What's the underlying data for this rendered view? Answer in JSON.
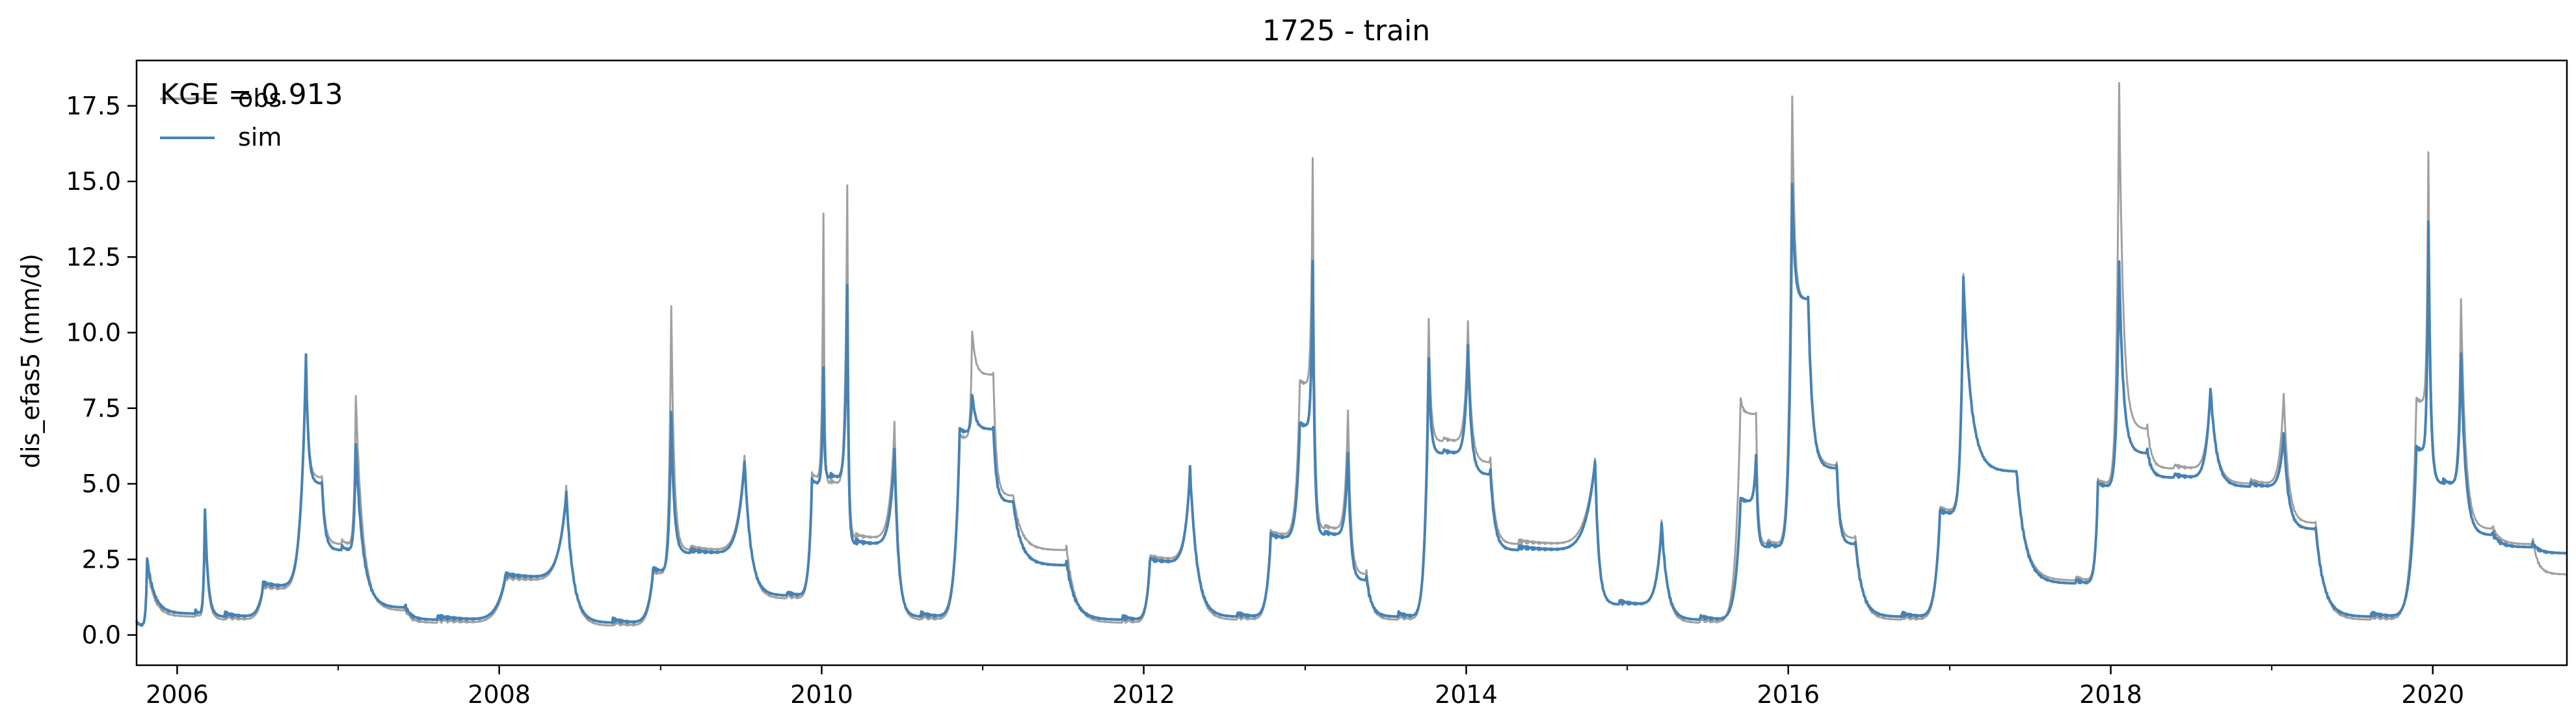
{
  "chart_data": {
    "type": "line",
    "title": "1725 - train",
    "xlabel": "",
    "ylabel": "dis_efas5 (mm/d)",
    "annotation": "KGE = 0.913",
    "xlim": [
      "2005-10-01",
      "2020-10-31"
    ],
    "ylim": [
      -1.0,
      19.0
    ],
    "yticks": [
      0.0,
      2.5,
      5.0,
      7.5,
      10.0,
      12.5,
      15.0,
      17.5
    ],
    "ytick_labels": [
      "0.0",
      "2.5",
      "5.0",
      "7.5",
      "10.0",
      "12.5",
      "15.0",
      "17.5"
    ],
    "xticks": [
      "2006-01-01",
      "2008-01-01",
      "2010-01-01",
      "2012-01-01",
      "2014-01-01",
      "2016-01-01",
      "2018-01-01",
      "2020-01-01"
    ],
    "xtick_labels": [
      "2006",
      "2008",
      "2010",
      "2012",
      "2014",
      "2016",
      "2018",
      "2020"
    ],
    "grid": false,
    "legend": {
      "position": "top-left",
      "entries": [
        "obs",
        "sim"
      ]
    },
    "series": [
      {
        "name": "obs",
        "color": "#a0a0a0",
        "x": [
          "2005-10-01",
          "2005-10-25",
          "2006-02-10",
          "2006-03-05",
          "2006-04-20",
          "2006-07-15",
          "2006-10-20",
          "2006-11-25",
          "2007-01-10",
          "2007-02-10",
          "2007-06-01",
          "2007-08-15",
          "2008-01-15",
          "2008-06-01",
          "2008-09-15",
          "2008-12-15",
          "2009-01-25",
          "2009-03-10",
          "2009-07-10",
          "2009-10-15",
          "2009-12-10",
          "2010-01-05",
          "2010-01-20",
          "2010-02-28",
          "2010-03-20",
          "2010-06-15",
          "2010-08-15",
          "2010-11-10",
          "2010-12-08",
          "2011-01-25",
          "2011-03-10",
          "2011-07-10",
          "2011-11-15",
          "2012-01-15",
          "2012-04-15",
          "2012-08-01",
          "2012-10-15",
          "2012-12-20",
          "2013-01-18",
          "2013-02-15",
          "2013-04-08",
          "2013-05-20",
          "2013-08-01",
          "2013-10-08",
          "2013-11-10",
          "2014-01-05",
          "2014-02-25",
          "2014-05-01",
          "2014-10-20",
          "2014-12-15",
          "2015-03-20",
          "2015-06-15",
          "2015-09-15",
          "2015-10-20",
          "2015-11-15",
          "2016-01-10",
          "2016-02-15",
          "2016-04-20",
          "2016-06-01",
          "2016-09-15",
          "2016-12-10",
          "2017-02-01",
          "2017-06-01",
          "2017-10-15",
          "2017-12-03",
          "2018-01-20",
          "2018-03-25",
          "2018-05-25",
          "2018-08-15",
          "2018-11-15",
          "2019-01-28",
          "2019-04-10",
          "2019-08-15",
          "2019-11-25",
          "2019-12-22",
          "2020-01-25",
          "2020-03-05",
          "2020-05-15",
          "2020-08-15",
          "2020-10-31"
        ],
        "y": [
          0.3,
          2.2,
          0.6,
          3.8,
          0.5,
          1.5,
          9.0,
          5.2,
          3.0,
          7.8,
          0.8,
          0.4,
          1.8,
          4.8,
          0.3,
          2.0,
          10.8,
          2.8,
          5.9,
          1.2,
          5.2,
          13.8,
          5.0,
          14.7,
          3.2,
          6.9,
          0.5,
          6.5,
          10.0,
          8.6,
          4.6,
          2.8,
          0.4,
          2.5,
          5.4,
          0.5,
          3.3,
          8.3,
          15.6,
          3.5,
          7.4,
          2.0,
          0.5,
          10.3,
          6.4,
          10.2,
          5.7,
          3.0,
          5.8,
          1.0,
          3.7,
          0.4,
          7.7,
          7.3,
          3.0,
          17.7,
          11.1,
          5.6,
          3.2,
          0.5,
          4.1,
          11.8,
          5.4,
          1.8,
          5.0,
          18.1,
          6.8,
          5.5,
          8.1,
          5.0,
          7.9,
          3.7,
          0.5,
          7.7,
          15.8,
          5.0,
          11.0,
          3.5,
          3.0,
          2.0
        ]
      },
      {
        "name": "sim",
        "color": "#4682b4",
        "x": [
          "2005-10-01",
          "2005-10-25",
          "2006-02-10",
          "2006-03-05",
          "2006-04-20",
          "2006-07-15",
          "2006-10-20",
          "2006-11-25",
          "2007-01-10",
          "2007-02-10",
          "2007-06-01",
          "2007-08-15",
          "2008-01-15",
          "2008-06-01",
          "2008-09-15",
          "2008-12-15",
          "2009-01-25",
          "2009-03-10",
          "2009-07-10",
          "2009-10-15",
          "2009-12-10",
          "2010-01-05",
          "2010-01-20",
          "2010-02-28",
          "2010-03-20",
          "2010-06-15",
          "2010-08-15",
          "2010-11-10",
          "2010-12-08",
          "2011-01-25",
          "2011-03-10",
          "2011-07-10",
          "2011-11-15",
          "2012-01-15",
          "2012-04-15",
          "2012-08-01",
          "2012-10-15",
          "2012-12-20",
          "2013-01-18",
          "2013-02-15",
          "2013-04-08",
          "2013-05-20",
          "2013-08-01",
          "2013-10-08",
          "2013-11-10",
          "2014-01-05",
          "2014-02-25",
          "2014-05-01",
          "2014-10-20",
          "2014-12-15",
          "2015-03-20",
          "2015-06-15",
          "2015-09-15",
          "2015-10-20",
          "2015-11-15",
          "2016-01-10",
          "2016-02-15",
          "2016-04-20",
          "2016-06-01",
          "2016-09-15",
          "2016-12-10",
          "2017-02-01",
          "2017-06-01",
          "2017-10-15",
          "2017-12-03",
          "2018-01-20",
          "2018-03-25",
          "2018-05-25",
          "2018-08-15",
          "2018-11-15",
          "2019-01-28",
          "2019-04-10",
          "2019-08-15",
          "2019-11-25",
          "2019-12-22",
          "2020-01-25",
          "2020-03-05",
          "2020-05-15",
          "2020-08-15",
          "2020-10-31"
        ],
        "y": [
          0.3,
          2.4,
          0.7,
          4.1,
          0.6,
          1.6,
          9.1,
          5.0,
          2.8,
          6.2,
          0.9,
          0.5,
          1.9,
          4.6,
          0.4,
          2.1,
          7.3,
          2.7,
          5.7,
          1.3,
          5.0,
          8.7,
          5.2,
          11.4,
          3.0,
          6.0,
          0.6,
          6.7,
          7.9,
          6.8,
          4.4,
          2.3,
          0.5,
          2.4,
          5.4,
          0.6,
          3.2,
          6.9,
          12.2,
          3.3,
          6.0,
          1.8,
          0.6,
          9.0,
          6.0,
          9.4,
          5.3,
          2.8,
          5.7,
          1.0,
          3.6,
          0.5,
          4.4,
          5.9,
          2.9,
          14.8,
          11.1,
          5.5,
          3.0,
          0.6,
          4.0,
          11.7,
          5.4,
          1.7,
          4.9,
          12.2,
          6.0,
          5.2,
          8.1,
          4.9,
          6.6,
          3.5,
          0.6,
          6.1,
          13.5,
          5.0,
          9.2,
          3.3,
          2.9,
          2.7
        ]
      }
    ]
  }
}
